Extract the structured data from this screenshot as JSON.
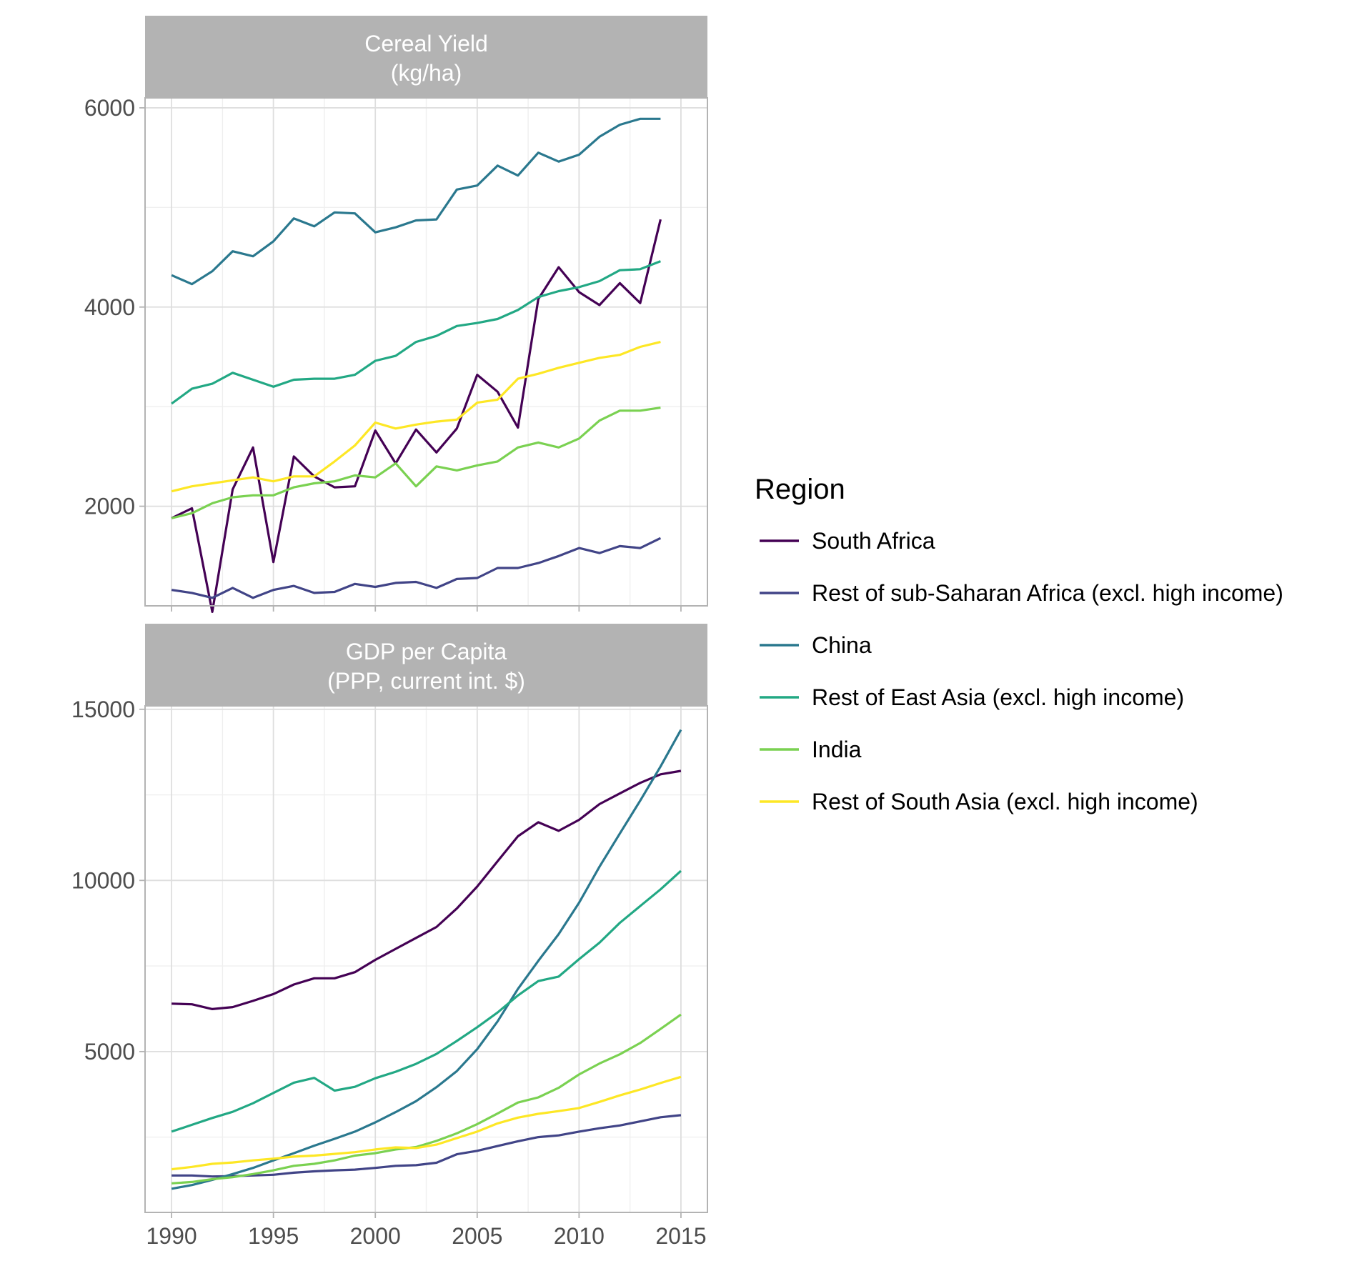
{
  "colors": {
    "strip_bg": "#b3b3b3",
    "panel_border": "#b3b3b3",
    "grid_major": "#dedede",
    "grid_minor": "#efefef",
    "tick_text": "#4d4d4d"
  },
  "legend": {
    "title": "Region",
    "position": "right"
  },
  "chart_data": [
    {
      "type": "line",
      "title": "Cereal Yield\n(kg/ha)",
      "x_ticks": [
        1990,
        1995,
        2000,
        2005,
        2010,
        2015
      ],
      "y_ticks": [
        2000,
        4000,
        6000
      ],
      "xlim": [
        1988.7,
        2016.3
      ],
      "ylim": [
        1000,
        6100
      ],
      "grid": true,
      "x": [
        1990,
        1991,
        1992,
        1993,
        1994,
        1995,
        1996,
        1997,
        1998,
        1999,
        2000,
        2001,
        2002,
        2003,
        2004,
        2005,
        2006,
        2007,
        2008,
        2009,
        2010,
        2011,
        2012,
        2013,
        2014
      ],
      "series": [
        {
          "name": "South Africa",
          "color": "#440154",
          "values": [
            1880,
            1980,
            940,
            2170,
            2590,
            1440,
            2500,
            2300,
            2190,
            2200,
            2760,
            2430,
            2770,
            2540,
            2780,
            3320,
            3150,
            2790,
            4080,
            4400,
            4150,
            4020,
            4240,
            4040,
            4880
          ]
        },
        {
          "name": "Rest of sub-Saharan Africa (excl. high income)",
          "color": "#414487",
          "values": [
            1160,
            1130,
            1080,
            1180,
            1080,
            1160,
            1200,
            1130,
            1140,
            1220,
            1190,
            1230,
            1240,
            1180,
            1270,
            1280,
            1380,
            1380,
            1430,
            1500,
            1580,
            1530,
            1600,
            1580,
            1680
          ]
        },
        {
          "name": "China",
          "color": "#2a788e",
          "values": [
            4320,
            4230,
            4360,
            4560,
            4510,
            4660,
            4890,
            4810,
            4950,
            4940,
            4750,
            4800,
            4870,
            4880,
            5180,
            5220,
            5420,
            5320,
            5550,
            5460,
            5530,
            5710,
            5830,
            5890,
            5890
          ]
        },
        {
          "name": "Rest of East Asia (excl. high income)",
          "color": "#22a884",
          "values": [
            3030,
            3180,
            3230,
            3340,
            3270,
            3200,
            3270,
            3280,
            3280,
            3320,
            3460,
            3510,
            3650,
            3710,
            3810,
            3840,
            3880,
            3970,
            4100,
            4160,
            4200,
            4260,
            4370,
            4380,
            4460
          ]
        },
        {
          "name": "India",
          "color": "#7ad151",
          "values": [
            1880,
            1930,
            2030,
            2090,
            2110,
            2110,
            2190,
            2230,
            2250,
            2310,
            2290,
            2430,
            2200,
            2400,
            2360,
            2410,
            2450,
            2590,
            2640,
            2590,
            2680,
            2860,
            2960,
            2960,
            2990
          ]
        },
        {
          "name": "Rest of South Asia (excl. high income)",
          "color": "#fde725",
          "values": [
            2150,
            2200,
            2230,
            2260,
            2290,
            2250,
            2300,
            2300,
            2450,
            2610,
            2840,
            2780,
            2820,
            2850,
            2870,
            3040,
            3070,
            3280,
            3330,
            3390,
            3440,
            3490,
            3520,
            3600,
            3650
          ]
        }
      ]
    },
    {
      "type": "line",
      "title": "GDP per Capita\n(PPP, current int. $)",
      "x_ticks": [
        1990,
        1995,
        2000,
        2005,
        2010,
        2015
      ],
      "y_ticks": [
        5000,
        10000,
        15000
      ],
      "xlim": [
        1988.7,
        2016.3
      ],
      "ylim": [
        300,
        15100
      ],
      "grid": true,
      "x": [
        1990,
        1991,
        1992,
        1993,
        1994,
        1995,
        1996,
        1997,
        1998,
        1999,
        2000,
        2001,
        2002,
        2003,
        2004,
        2005,
        2006,
        2007,
        2008,
        2009,
        2010,
        2011,
        2012,
        2013,
        2014,
        2015
      ],
      "series": [
        {
          "name": "South Africa",
          "color": "#440154",
          "values": [
            6400,
            6380,
            6240,
            6300,
            6480,
            6680,
            6960,
            7140,
            7140,
            7320,
            7680,
            8000,
            8320,
            8640,
            9180,
            9820,
            10560,
            11290,
            11700,
            11450,
            11770,
            12230,
            12540,
            12850,
            13100,
            13200
          ]
        },
        {
          "name": "Rest of sub-Saharan Africa (excl. high income)",
          "color": "#414487",
          "values": [
            1380,
            1380,
            1350,
            1360,
            1380,
            1400,
            1460,
            1500,
            1530,
            1550,
            1600,
            1660,
            1680,
            1750,
            2000,
            2100,
            2240,
            2380,
            2500,
            2550,
            2660,
            2760,
            2840,
            2960,
            3080,
            3140
          ]
        },
        {
          "name": "China",
          "color": "#2a788e",
          "values": [
            990,
            1100,
            1250,
            1420,
            1600,
            1820,
            2030,
            2250,
            2450,
            2660,
            2930,
            3230,
            3550,
            3960,
            4430,
            5070,
            5880,
            6830,
            7650,
            8430,
            9350,
            10400,
            11370,
            12330,
            13330,
            14400
          ]
        },
        {
          "name": "Rest of East Asia (excl. high income)",
          "color": "#22a884",
          "values": [
            2660,
            2860,
            3060,
            3240,
            3490,
            3790,
            4090,
            4230,
            3860,
            3970,
            4220,
            4410,
            4640,
            4930,
            5310,
            5710,
            6140,
            6640,
            7060,
            7190,
            7700,
            8180,
            8760,
            9250,
            9740,
            10280
          ]
        },
        {
          "name": "India",
          "color": "#7ad151",
          "values": [
            1150,
            1190,
            1270,
            1330,
            1420,
            1530,
            1660,
            1720,
            1820,
            1960,
            2030,
            2140,
            2210,
            2390,
            2610,
            2880,
            3190,
            3510,
            3660,
            3940,
            4330,
            4650,
            4920,
            5250,
            5660,
            6080
          ]
        },
        {
          "name": "Rest of South Asia (excl. high income)",
          "color": "#fde725",
          "values": [
            1560,
            1630,
            1720,
            1760,
            1820,
            1870,
            1930,
            1960,
            2010,
            2060,
            2140,
            2200,
            2180,
            2280,
            2470,
            2660,
            2900,
            3070,
            3180,
            3260,
            3350,
            3530,
            3720,
            3890,
            4080,
            4260
          ]
        }
      ]
    }
  ]
}
